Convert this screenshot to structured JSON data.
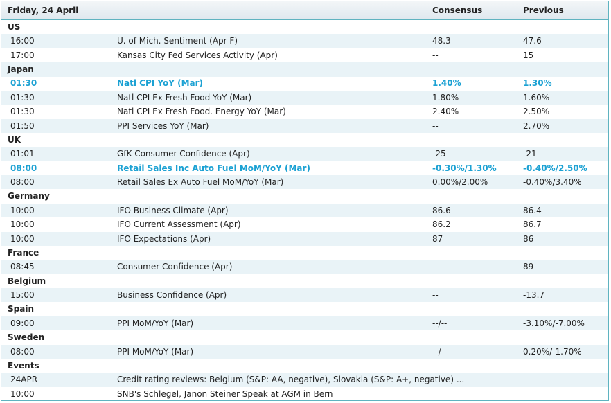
{
  "header": {
    "date": "Friday, 24 April",
    "consensus": "Consensus",
    "previous": "Previous"
  },
  "sections": [
    {
      "name": "US",
      "rows": [
        {
          "time": "16:00",
          "event": "U. of Mich. Sentiment (Apr F)",
          "consensus": "48.3",
          "previous": "47.6"
        },
        {
          "time": "17:00",
          "event": "Kansas City Fed Services Activity (Apr)",
          "consensus": "--",
          "previous": "15"
        }
      ]
    },
    {
      "name": "Japan",
      "rows": [
        {
          "time": "01:30",
          "event": "Natl CPI YoY (Mar)",
          "consensus": "1.40%",
          "previous": "1.30%",
          "highlight": true
        },
        {
          "time": "01:30",
          "event": "Natl CPI Ex Fresh Food YoY (Mar)",
          "consensus": "1.80%",
          "previous": "1.60%"
        },
        {
          "time": "01:30",
          "event": "Natl CPI Ex Fresh Food. Energy YoY (Mar)",
          "consensus": "2.40%",
          "previous": "2.50%"
        },
        {
          "time": "01:50",
          "event": "PPI Services YoY (Mar)",
          "consensus": "--",
          "previous": "2.70%"
        }
      ]
    },
    {
      "name": "UK",
      "rows": [
        {
          "time": "01:01",
          "event": "GfK Consumer Confidence (Apr)",
          "consensus": "-25",
          "previous": "-21"
        },
        {
          "time": "08:00",
          "event": "Retail Sales Inc Auto Fuel MoM/YoY (Mar)",
          "consensus": "-0.30%/1.30%",
          "previous": "-0.40%/2.50%",
          "highlight": true
        },
        {
          "time": "08:00",
          "event": "Retail Sales Ex Auto Fuel MoM/YoY (Mar)",
          "consensus": "0.00%/2.00%",
          "previous": "-0.40%/3.40%"
        }
      ]
    },
    {
      "name": "Germany",
      "rows": [
        {
          "time": "10:00",
          "event": "IFO Business Climate (Apr)",
          "consensus": "86.6",
          "previous": "86.4"
        },
        {
          "time": "10:00",
          "event": "IFO Current Assessment (Apr)",
          "consensus": "86.2",
          "previous": "86.7"
        },
        {
          "time": "10:00",
          "event": "IFO Expectations (Apr)",
          "consensus": "87",
          "previous": "86"
        }
      ]
    },
    {
      "name": "France",
      "rows": [
        {
          "time": "08:45",
          "event": "Consumer Confidence (Apr)",
          "consensus": "--",
          "previous": "89"
        }
      ]
    },
    {
      "name": "Belgium",
      "rows": [
        {
          "time": "15:00",
          "event": "Business Confidence (Apr)",
          "consensus": "--",
          "previous": "-13.7"
        }
      ]
    },
    {
      "name": "Spain",
      "rows": [
        {
          "time": "09:00",
          "event": "PPI MoM/YoY (Mar)",
          "consensus": "--/--",
          "previous": "-3.10%/-7.00%"
        }
      ]
    },
    {
      "name": "Sweden",
      "rows": [
        {
          "time": "08:00",
          "event": "PPI MoM/YoY (Mar)",
          "consensus": "--/--",
          "previous": "0.20%/-1.70%"
        }
      ]
    },
    {
      "name": "Events",
      "rows": [
        {
          "time": "24APR",
          "event": "Credit rating reviews: Belgium (S&P: AA, negative), Slovakia (S&P: A+, negative) ..."
        },
        {
          "time": "10:00",
          "event": "SNB's Schlegel, Janon Steiner Speak at AGM in Bern"
        }
      ]
    }
  ]
}
